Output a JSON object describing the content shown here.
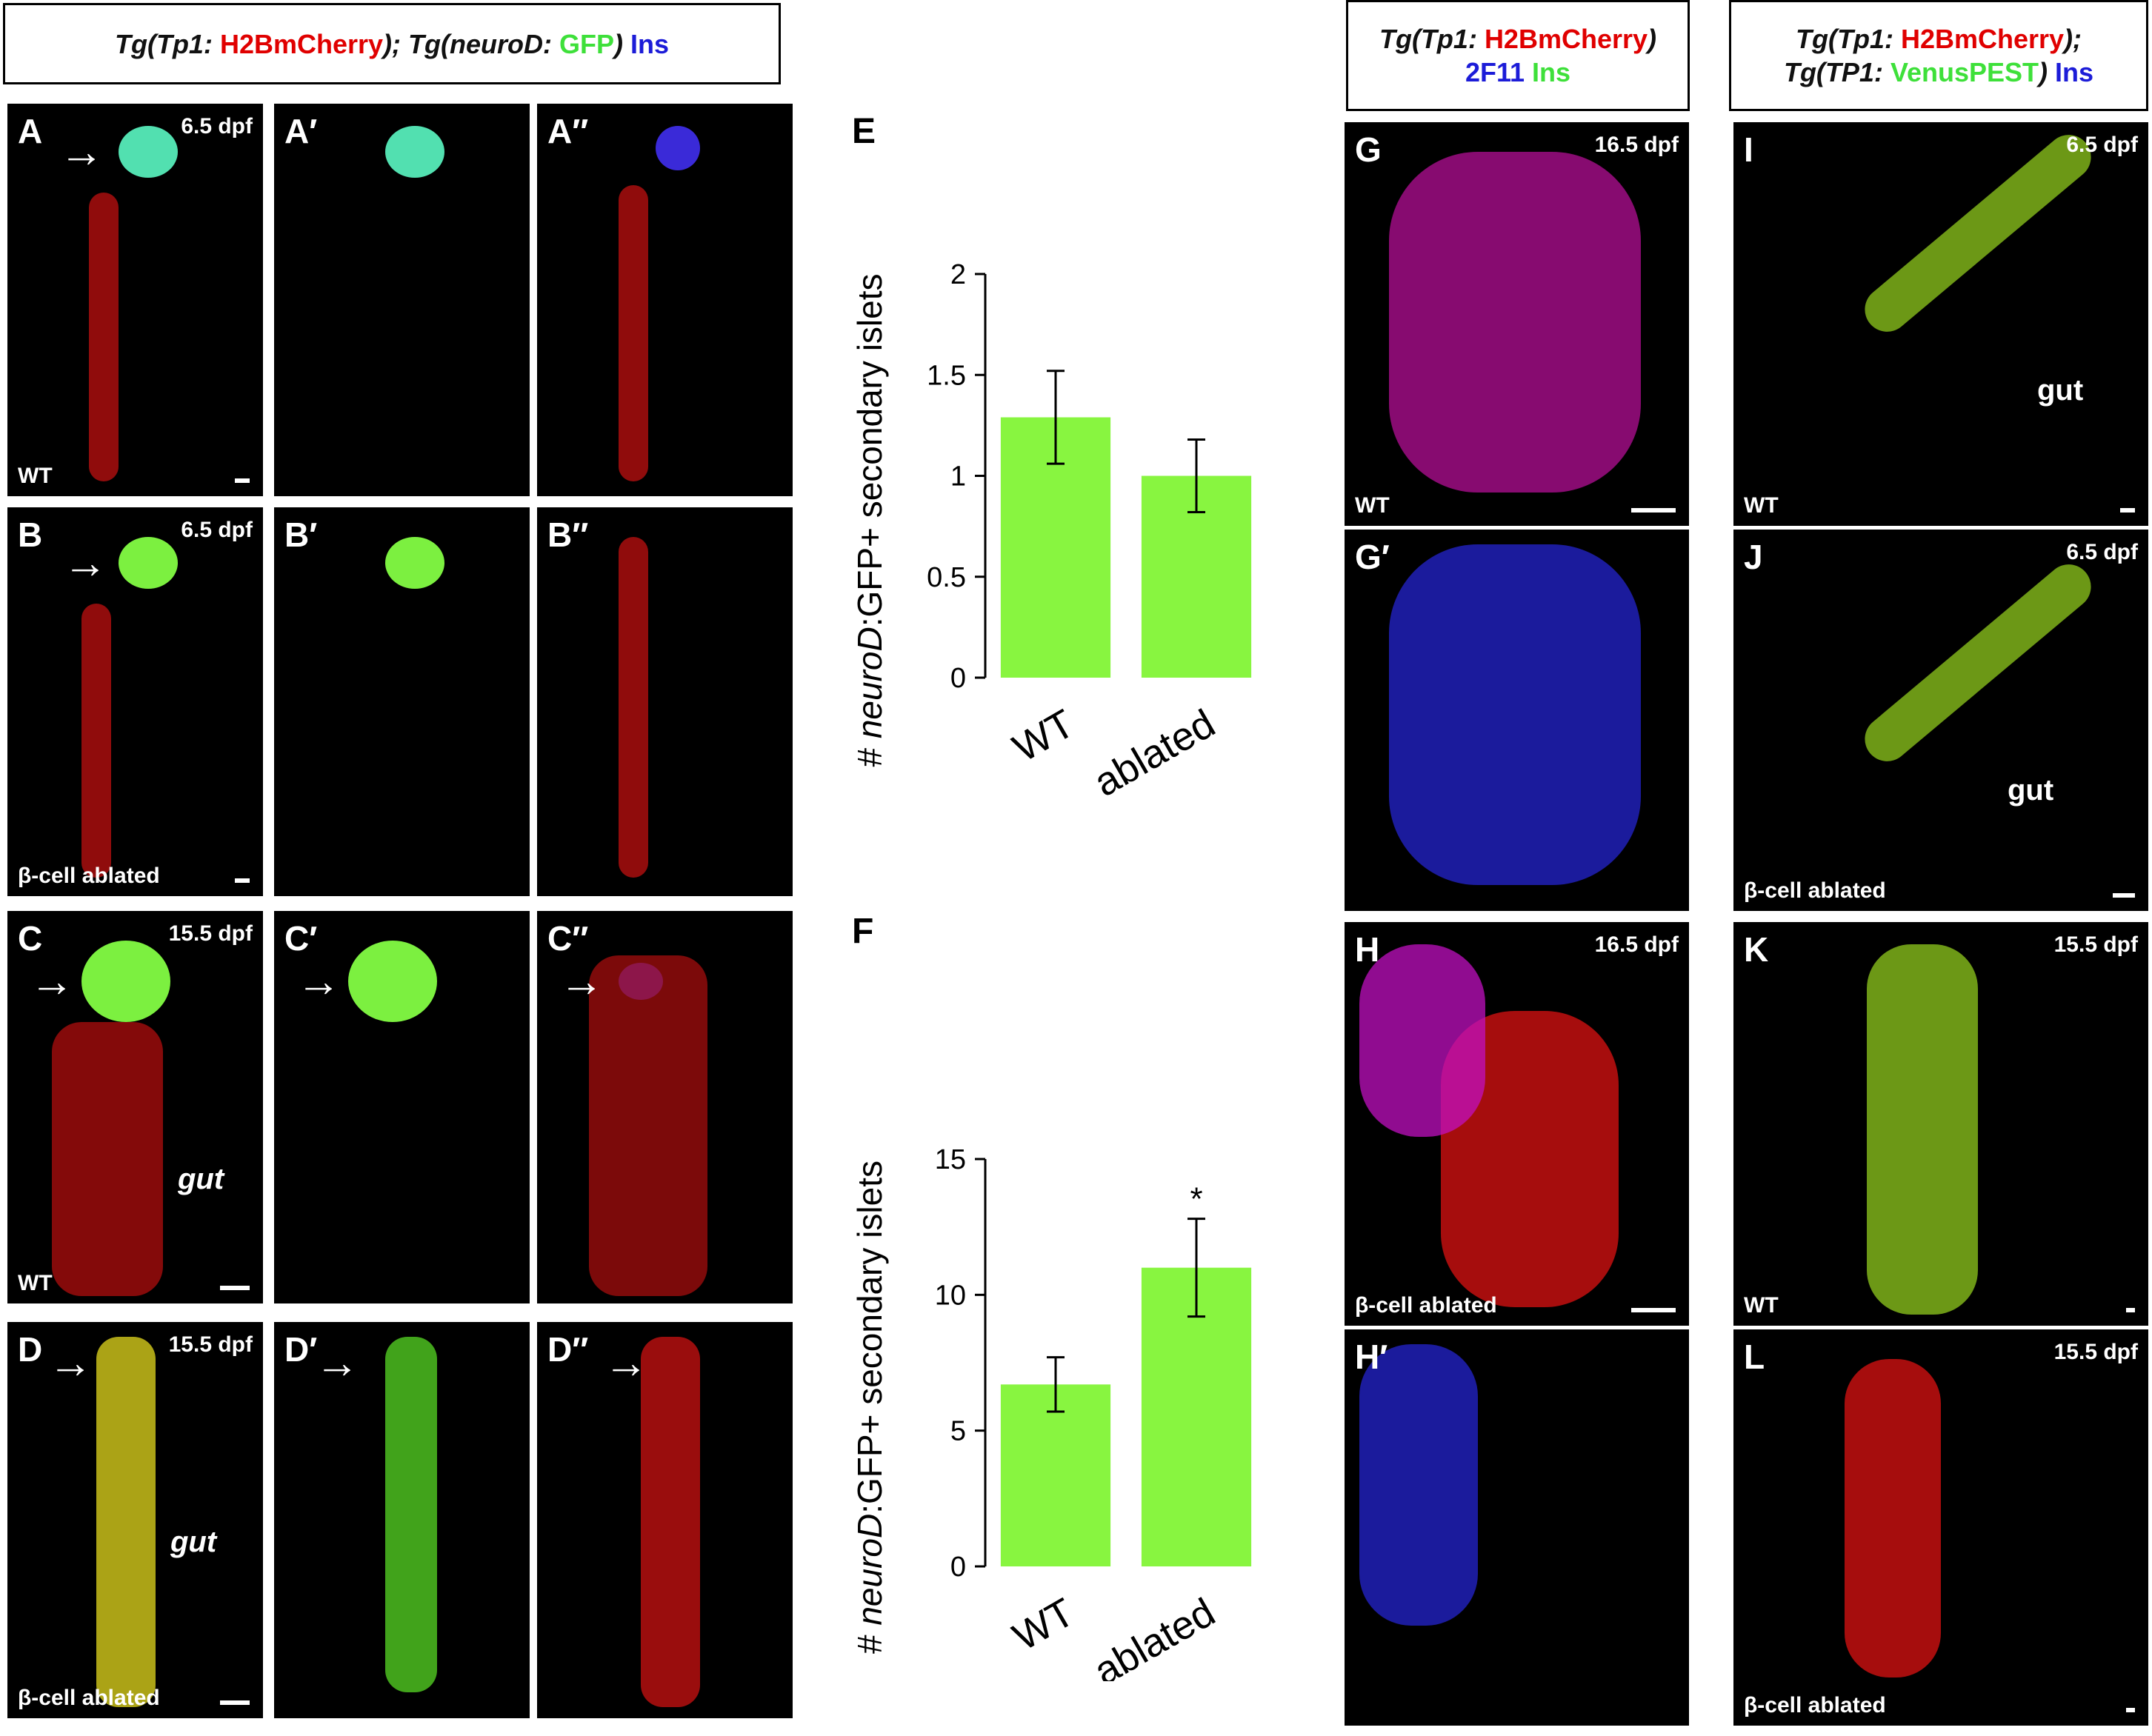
{
  "header_left": {
    "parts": [
      {
        "text": "Tg(Tp1: ",
        "cls": "c-black it"
      },
      {
        "text": "H2BmCherry",
        "cls": "c-red"
      },
      {
        "text": "); Tg(neuroD: ",
        "cls": "c-black it"
      },
      {
        "text": "GFP",
        "cls": "c-green"
      },
      {
        "text": ") ",
        "cls": "c-black it"
      },
      {
        "text": "Ins",
        "cls": "c-blue"
      }
    ]
  },
  "header_mid": {
    "line1": [
      {
        "text": "Tg(Tp1: ",
        "cls": "c-black it"
      },
      {
        "text": "H2BmCherry",
        "cls": "c-red"
      },
      {
        "text": ")",
        "cls": "c-black it"
      }
    ],
    "line2": [
      {
        "text": "2F11 ",
        "cls": "c-blue"
      },
      {
        "text": "Ins",
        "cls": "c-green"
      }
    ]
  },
  "header_right": {
    "line1": [
      {
        "text": "Tg(Tp1: ",
        "cls": "c-black it"
      },
      {
        "text": "H2BmCherry",
        "cls": "c-red"
      },
      {
        "text": ");",
        "cls": "c-black it"
      }
    ],
    "line2": [
      {
        "text": "Tg(TP1: ",
        "cls": "c-black it"
      },
      {
        "text": "VenusPEST",
        "cls": "c-green"
      },
      {
        "text": ") ",
        "cls": "c-black it"
      },
      {
        "text": "Ins",
        "cls": "c-blue"
      }
    ]
  },
  "panels": {
    "A": {
      "label": "A",
      "stage": "6.5 dpf",
      "cond": "WT"
    },
    "A1": {
      "label": "A′"
    },
    "A2": {
      "label": "A′′"
    },
    "B": {
      "label": "B",
      "stage": "6.5 dpf",
      "cond": "β-cell ablated"
    },
    "B1": {
      "label": "B′"
    },
    "B2": {
      "label": "B′′"
    },
    "C": {
      "label": "C",
      "stage": "15.5 dpf",
      "cond": "WT",
      "gut": "gut"
    },
    "C1": {
      "label": "C′"
    },
    "C2": {
      "label": "C′′"
    },
    "D": {
      "label": "D",
      "stage": "15.5 dpf",
      "cond": "β-cell ablated",
      "gut": "gut"
    },
    "D1": {
      "label": "D′"
    },
    "D2": {
      "label": "D′′"
    },
    "G": {
      "label": "G",
      "stage": "16.5 dpf",
      "cond": "WT"
    },
    "G1": {
      "label": "G′"
    },
    "H": {
      "label": "H",
      "stage": "16.5 dpf",
      "cond": "β-cell ablated"
    },
    "H1": {
      "label": "H′"
    },
    "I": {
      "label": "I",
      "stage": "6.5 dpf",
      "cond": "WT",
      "gut": "gut"
    },
    "J": {
      "label": "J",
      "stage": "6.5 dpf",
      "cond": "β-cell ablated",
      "gut": "gut"
    },
    "K": {
      "label": "K",
      "stage": "15.5 dpf",
      "cond": "WT"
    },
    "L": {
      "label": "L",
      "stage": "15.5 dpf",
      "cond": "β-cell ablated"
    }
  },
  "colors": {
    "bar": "#88f540",
    "red": "#e00000",
    "green": "#3ee03a",
    "blue": "#1c1cd8"
  },
  "chart_labels": {
    "E": "E",
    "F": "F"
  },
  "chart_data": [
    {
      "type": "bar",
      "panel": "E",
      "categories": [
        "WT",
        "ablated"
      ],
      "values": [
        1.29,
        1.0
      ],
      "errors": [
        0.23,
        0.18
      ],
      "ylabel_prefix": "# ",
      "ylabel_italic": "neuroD",
      "ylabel_rest": ":GFP+ secondary islets",
      "ylim": [
        0,
        2
      ],
      "yticks": [
        "0",
        "0.5",
        "1",
        "1.5",
        "2"
      ],
      "significance": [
        "",
        ""
      ]
    },
    {
      "type": "bar",
      "panel": "F",
      "categories": [
        "WT",
        "ablated"
      ],
      "values": [
        6.7,
        11.0
      ],
      "errors": [
        1.0,
        1.8
      ],
      "ylabel_prefix": "# ",
      "ylabel_italic": "neuroD",
      "ylabel_rest": ":GFP+ secondary islets",
      "ylim": [
        0,
        15
      ],
      "yticks": [
        "0",
        "5",
        "10",
        "15"
      ],
      "significance": [
        "",
        "*"
      ]
    }
  ]
}
